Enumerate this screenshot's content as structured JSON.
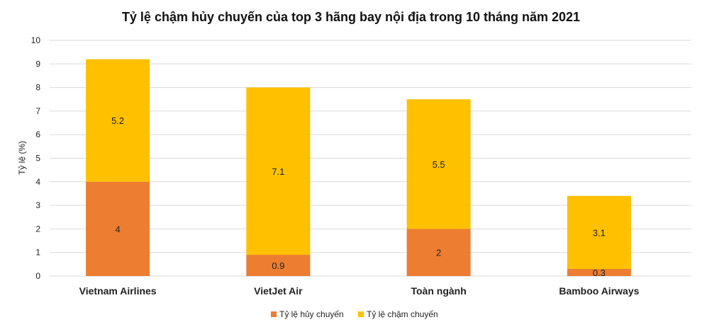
{
  "chart_data": {
    "type": "bar",
    "stacked": true,
    "title": "Tỷ lệ chậm hủy chuyến của top 3 hãng bay nội địa trong 10 tháng năm 2021",
    "xlabel": "",
    "ylabel": "Tỷ lệ (%)",
    "ylim": [
      0,
      10
    ],
    "yticks": [
      0,
      1,
      2,
      3,
      4,
      5,
      6,
      7,
      8,
      9,
      10
    ],
    "grid": true,
    "legend_position": "bottom",
    "categories": [
      "Vietnam Airlines",
      "VietJet Air",
      "Toàn ngành",
      "Bamboo Airways"
    ],
    "series": [
      {
        "name": "Tỷ lệ hủy chuyến",
        "color": "#ED7D31",
        "values": [
          4,
          0.9,
          2,
          0.3
        ]
      },
      {
        "name": "Tỷ lệ chậm chuyến",
        "color": "#FFC000",
        "values": [
          5.2,
          7.1,
          5.5,
          3.1
        ]
      }
    ]
  }
}
